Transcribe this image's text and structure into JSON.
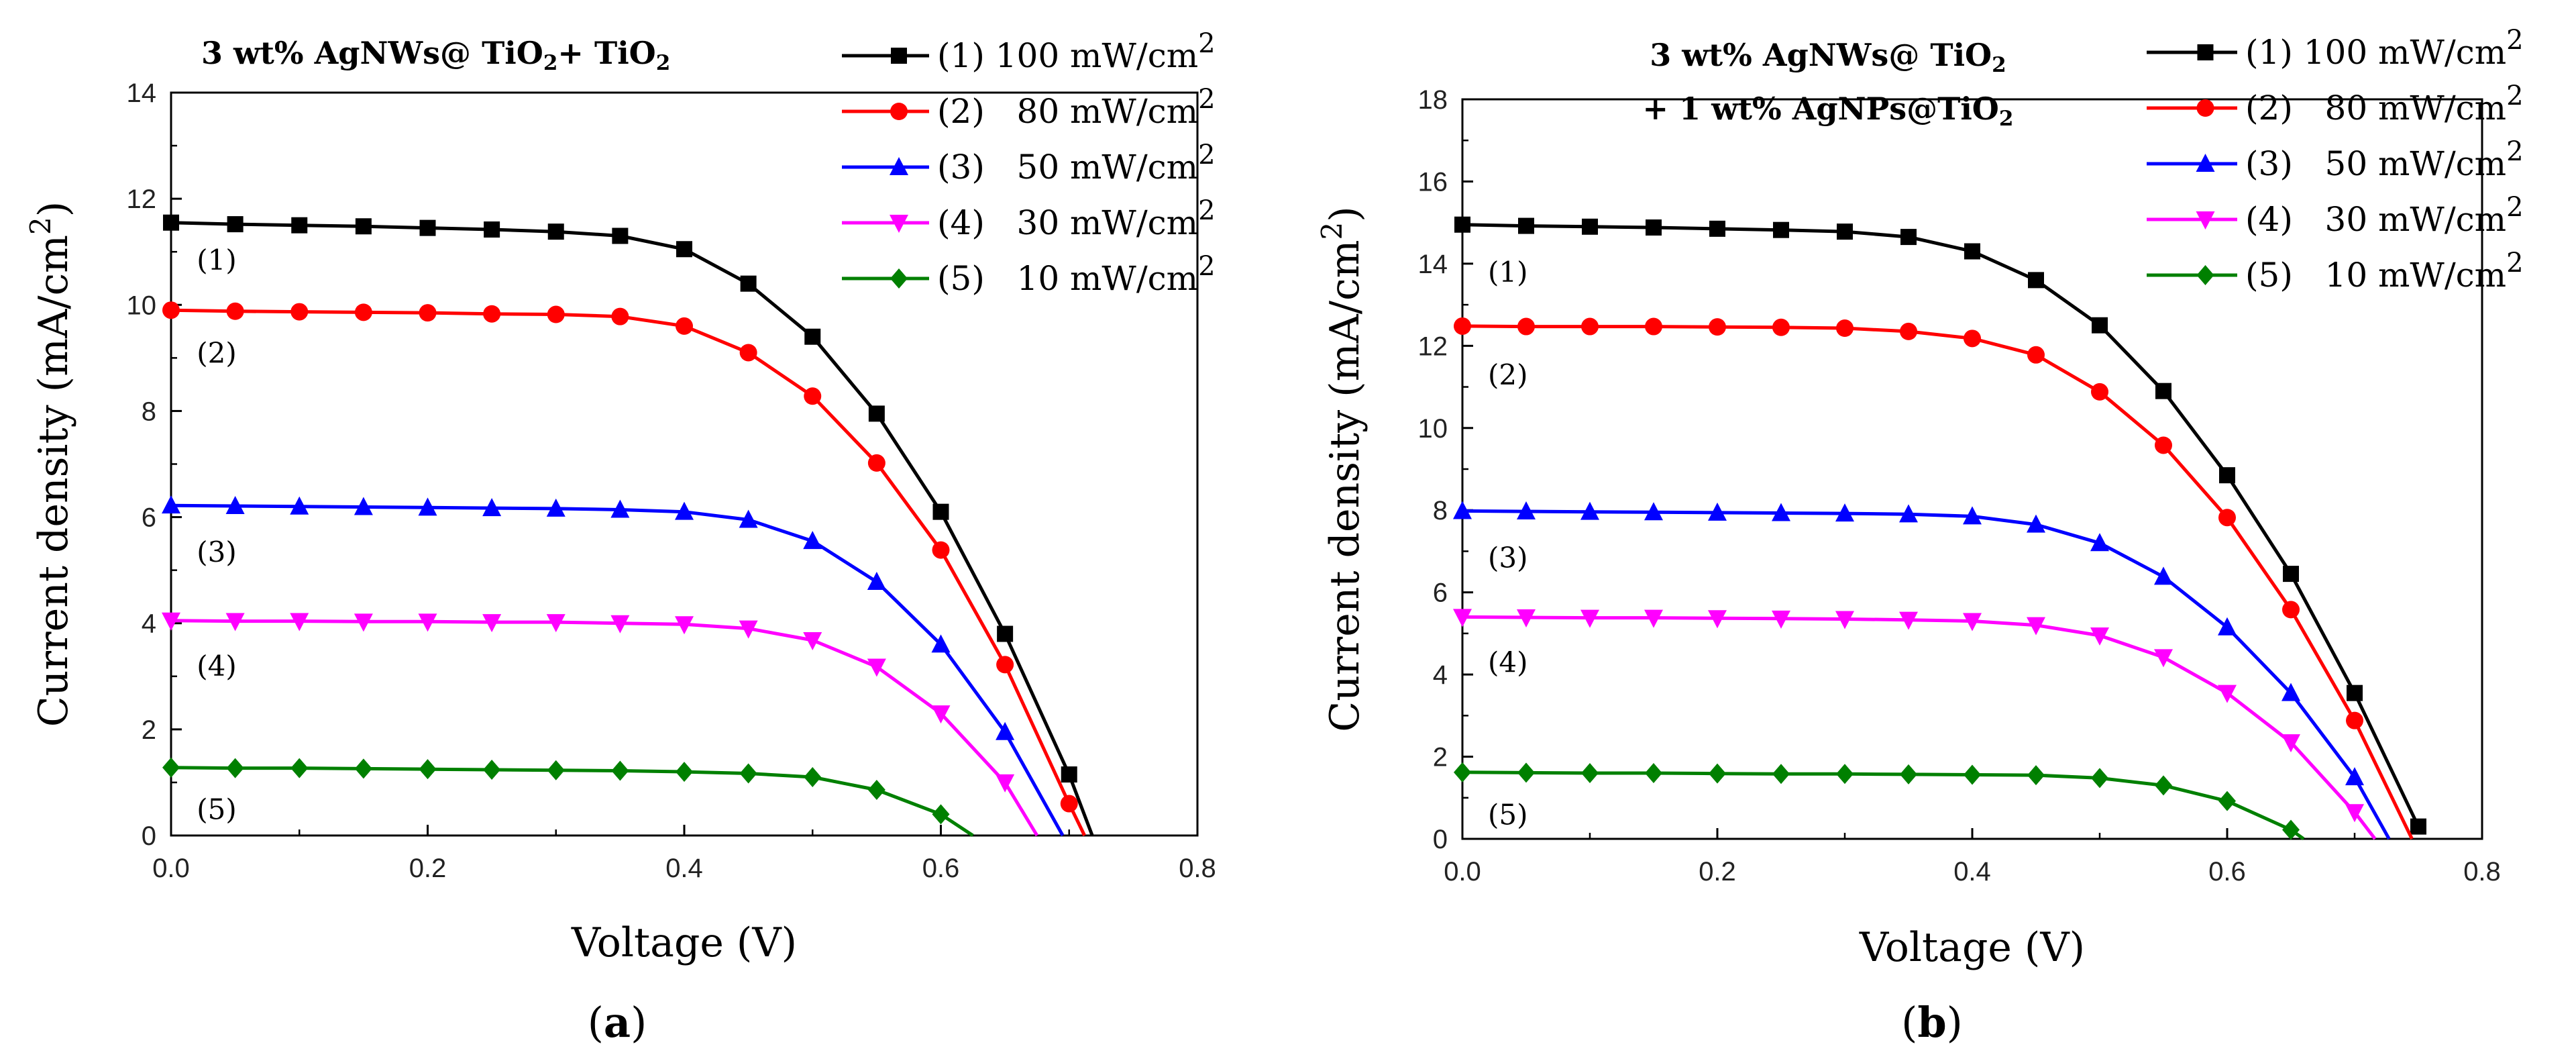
{
  "chart_data": [
    {
      "type": "line",
      "panel_label": "a",
      "title_parts": [
        {
          "text": "3 wt% AgNWs@ TiO"
        },
        {
          "text": "2",
          "sub": true
        },
        {
          "text": "+ TiO"
        },
        {
          "text": "2",
          "sub": true
        }
      ],
      "title_lines": [
        [
          {
            "text": "3 wt% AgNWs@ TiO"
          },
          {
            "text": "2",
            "sub": true
          },
          {
            "text": "+ TiO"
          },
          {
            "text": "2",
            "sub": true
          }
        ]
      ],
      "xlabel": "Voltage (V)",
      "ylabel_parts": [
        {
          "text": "Current density (mA/cm"
        },
        {
          "text": "2",
          "sup": true
        },
        {
          "text": ")"
        }
      ],
      "xlim": [
        0,
        0.8
      ],
      "ylim": [
        0,
        14
      ],
      "xticks": [
        0.0,
        0.2,
        0.4,
        0.6,
        0.8
      ],
      "xtick_labels": [
        "0.0",
        "0.2",
        "0.4",
        "0.6",
        "0.8"
      ],
      "yticks": [
        0,
        2,
        4,
        6,
        8,
        10,
        12,
        14
      ],
      "ytick_labels": [
        "0",
        "2",
        "4",
        "6",
        "8",
        "10",
        "12",
        "14"
      ],
      "grid": false,
      "legend_position": "top-right",
      "series": [
        {
          "name": "(1) 100 mW/cm2",
          "legend_num": "(1)",
          "legend_text": "100 mW/cm",
          "legend_sup": "2",
          "curve_label": "(1)",
          "curve_label_at": [
            0.02,
            10.85
          ],
          "color": "#000000",
          "marker": "square",
          "x": [
            0,
            0.05,
            0.1,
            0.15,
            0.2,
            0.25,
            0.3,
            0.35,
            0.4,
            0.45,
            0.5,
            0.55,
            0.6,
            0.65,
            0.7,
            0.718
          ],
          "y": [
            11.55,
            11.52,
            11.5,
            11.48,
            11.45,
            11.42,
            11.38,
            11.3,
            11.05,
            10.4,
            9.4,
            7.95,
            6.1,
            3.8,
            1.15,
            0
          ],
          "marker_count": 15
        },
        {
          "name": "(2) 80 mW/cm2",
          "legend_num": "(2)",
          "legend_text": "80 mW/cm",
          "legend_sup": "2",
          "curve_label": "(2)",
          "curve_label_at": [
            0.02,
            9.1
          ],
          "color": "#ff0000",
          "marker": "circle",
          "x": [
            0,
            0.05,
            0.1,
            0.15,
            0.2,
            0.25,
            0.3,
            0.35,
            0.4,
            0.45,
            0.5,
            0.55,
            0.6,
            0.65,
            0.7,
            0.712
          ],
          "y": [
            9.9,
            9.88,
            9.87,
            9.86,
            9.85,
            9.83,
            9.82,
            9.78,
            9.6,
            9.1,
            8.28,
            7.02,
            5.38,
            3.22,
            0.6,
            0
          ],
          "marker_count": 15
        },
        {
          "name": "(3) 50 mW/cm2",
          "legend_num": "(3)",
          "legend_text": "50 mW/cm",
          "legend_sup": "2",
          "curve_label": "(3)",
          "curve_label_at": [
            0.02,
            5.35
          ],
          "color": "#0000ff",
          "marker": "triangle-up",
          "x": [
            0,
            0.05,
            0.1,
            0.15,
            0.2,
            0.25,
            0.3,
            0.35,
            0.4,
            0.45,
            0.5,
            0.55,
            0.6,
            0.65,
            0.695
          ],
          "y": [
            6.22,
            6.21,
            6.2,
            6.19,
            6.18,
            6.17,
            6.16,
            6.14,
            6.1,
            5.95,
            5.55,
            4.78,
            3.6,
            1.95,
            0
          ],
          "marker_count": 14
        },
        {
          "name": "(4) 30 mW/cm2",
          "legend_num": "(4)",
          "legend_text": "30 mW/cm",
          "legend_sup": "2",
          "curve_label": "(4)",
          "curve_label_at": [
            0.02,
            3.2
          ],
          "color": "#ff00ff",
          "marker": "triangle-down",
          "x": [
            0,
            0.05,
            0.1,
            0.15,
            0.2,
            0.25,
            0.3,
            0.35,
            0.4,
            0.45,
            0.5,
            0.55,
            0.6,
            0.65,
            0.675
          ],
          "y": [
            4.05,
            4.04,
            4.04,
            4.03,
            4.03,
            4.02,
            4.02,
            4.0,
            3.98,
            3.9,
            3.68,
            3.18,
            2.3,
            1.0,
            0
          ],
          "marker_count": 14
        },
        {
          "name": "(5) 10 mW/cm2",
          "legend_num": "(5)",
          "legend_text": "10 mW/cm",
          "legend_sup": "2",
          "curve_label": "(5)",
          "curve_label_at": [
            0.02,
            0.5
          ],
          "color": "#008000",
          "marker": "diamond",
          "x": [
            0,
            0.05,
            0.1,
            0.15,
            0.2,
            0.25,
            0.3,
            0.35,
            0.4,
            0.45,
            0.5,
            0.55,
            0.6,
            0.625
          ],
          "y": [
            1.28,
            1.27,
            1.27,
            1.26,
            1.25,
            1.24,
            1.23,
            1.22,
            1.2,
            1.17,
            1.1,
            0.86,
            0.4,
            0
          ],
          "marker_count": 13
        }
      ]
    },
    {
      "type": "line",
      "panel_label": "b",
      "title_parts": [
        {
          "text": "3 wt% AgNWs@ TiO"
        },
        {
          "text": "2",
          "sub": true
        },
        {
          "text": " + 1 wt% AgNPs@TiO"
        },
        {
          "text": "2",
          "sub": true
        }
      ],
      "title_lines": [
        [
          {
            "text": "3 wt% AgNWs@ TiO"
          },
          {
            "text": "2",
            "sub": true
          }
        ],
        [
          {
            "text": "+ 1 wt% AgNPs@TiO"
          },
          {
            "text": "2",
            "sub": true
          }
        ]
      ],
      "xlabel": "Voltage (V)",
      "ylabel_parts": [
        {
          "text": "Current density (mA/cm"
        },
        {
          "text": "2",
          "sup": true
        },
        {
          "text": ")"
        }
      ],
      "xlim": [
        0,
        0.8
      ],
      "ylim": [
        0,
        18
      ],
      "xticks": [
        0.0,
        0.2,
        0.4,
        0.6,
        0.8
      ],
      "xtick_labels": [
        "0.0",
        "0.2",
        "0.4",
        "0.6",
        "0.8"
      ],
      "yticks": [
        0,
        2,
        4,
        6,
        8,
        10,
        12,
        14,
        16,
        18
      ],
      "ytick_labels": [
        "0",
        "2",
        "4",
        "6",
        "8",
        "10",
        "12",
        "14",
        "16",
        "18"
      ],
      "grid": false,
      "legend_position": "top-right",
      "series": [
        {
          "name": "(1) 100 mW/cm2",
          "legend_num": "(1)",
          "legend_text": "100 mW/cm",
          "legend_sup": "2",
          "curve_label": "(1)",
          "curve_label_at": [
            0.02,
            13.8
          ],
          "color": "#000000",
          "marker": "square",
          "x": [
            0,
            0.05,
            0.1,
            0.15,
            0.2,
            0.25,
            0.3,
            0.35,
            0.4,
            0.45,
            0.5,
            0.55,
            0.6,
            0.65,
            0.7,
            0.75
          ],
          "y": [
            14.95,
            14.92,
            14.9,
            14.88,
            14.85,
            14.82,
            14.78,
            14.65,
            14.3,
            13.6,
            12.5,
            10.9,
            8.85,
            6.45,
            3.55,
            0.3
          ],
          "marker_count": 16
        },
        {
          "name": "(2) 80 mW/cm2",
          "legend_num": "(2)",
          "legend_text": "80 mW/cm",
          "legend_sup": "2",
          "curve_label": "(2)",
          "curve_label_at": [
            0.02,
            11.3
          ],
          "color": "#ff0000",
          "marker": "circle",
          "x": [
            0,
            0.05,
            0.1,
            0.15,
            0.2,
            0.25,
            0.3,
            0.35,
            0.4,
            0.45,
            0.5,
            0.55,
            0.6,
            0.65,
            0.7,
            0.745
          ],
          "y": [
            12.48,
            12.47,
            12.47,
            12.47,
            12.46,
            12.45,
            12.43,
            12.35,
            12.18,
            11.78,
            10.88,
            9.58,
            7.82,
            5.58,
            2.88,
            0
          ],
          "marker_count": 15
        },
        {
          "name": "(3) 50 mW/cm2",
          "legend_num": "(3)",
          "legend_text": "50 mW/cm",
          "legend_sup": "2",
          "curve_label": "(3)",
          "curve_label_at": [
            0.02,
            6.85
          ],
          "color": "#0000ff",
          "marker": "triangle-up",
          "x": [
            0,
            0.05,
            0.1,
            0.15,
            0.2,
            0.25,
            0.3,
            0.35,
            0.4,
            0.45,
            0.5,
            0.55,
            0.6,
            0.65,
            0.7,
            0.727
          ],
          "y": [
            7.98,
            7.97,
            7.96,
            7.95,
            7.94,
            7.93,
            7.92,
            7.9,
            7.85,
            7.65,
            7.2,
            6.38,
            5.15,
            3.55,
            1.5,
            0
          ],
          "marker_count": 15
        },
        {
          "name": "(4) 30 mW/cm2",
          "legend_num": "(4)",
          "legend_text": "30 mW/cm",
          "legend_sup": "2",
          "curve_label": "(4)",
          "curve_label_at": [
            0.02,
            4.3
          ],
          "color": "#ff00ff",
          "marker": "triangle-down",
          "x": [
            0,
            0.05,
            0.1,
            0.15,
            0.2,
            0.25,
            0.3,
            0.35,
            0.4,
            0.45,
            0.5,
            0.55,
            0.6,
            0.65,
            0.7,
            0.716
          ],
          "y": [
            5.4,
            5.39,
            5.38,
            5.38,
            5.37,
            5.36,
            5.35,
            5.33,
            5.3,
            5.2,
            4.95,
            4.42,
            3.55,
            2.35,
            0.65,
            0
          ],
          "marker_count": 15
        },
        {
          "name": "(5) 10 mW/cm2",
          "legend_num": "(5)",
          "legend_text": "10 mW/cm",
          "legend_sup": "2",
          "curve_label": "(5)",
          "curve_label_at": [
            0.02,
            0.6
          ],
          "color": "#008000",
          "marker": "diamond",
          "x": [
            0,
            0.05,
            0.1,
            0.15,
            0.2,
            0.25,
            0.3,
            0.35,
            0.4,
            0.45,
            0.5,
            0.55,
            0.6,
            0.65,
            0.66
          ],
          "y": [
            1.62,
            1.61,
            1.6,
            1.6,
            1.59,
            1.58,
            1.58,
            1.57,
            1.56,
            1.55,
            1.48,
            1.3,
            0.92,
            0.22,
            0
          ],
          "marker_count": 14
        }
      ]
    }
  ]
}
